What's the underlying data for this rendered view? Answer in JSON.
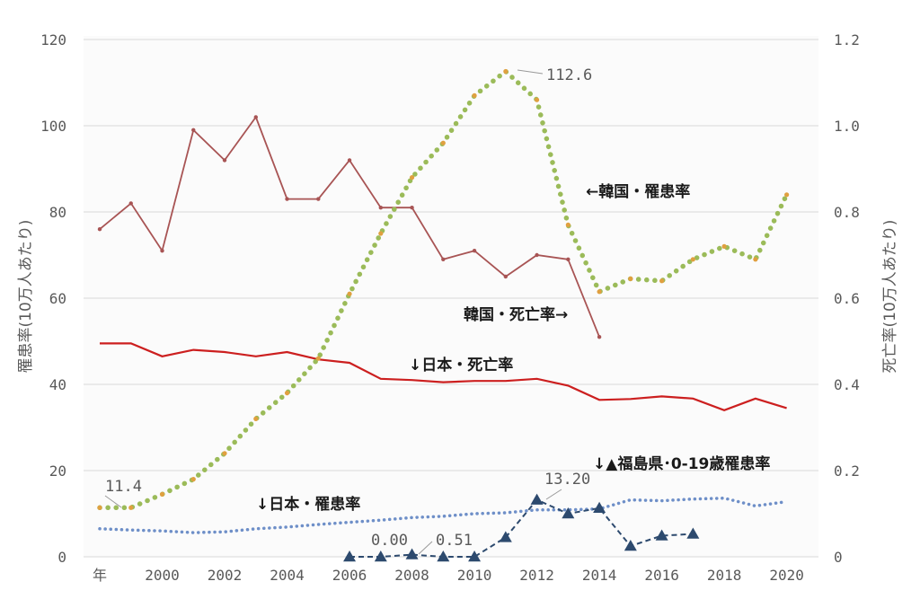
{
  "chart_data": {
    "type": "line",
    "x_label_first": "年",
    "x_ticks": [
      "2000",
      "2002",
      "2004",
      "2006",
      "2008",
      "2010",
      "2012",
      "2014",
      "2016",
      "2018",
      "2020"
    ],
    "y_left": {
      "label": "罹患率(10万人あたり)",
      "ticks": [
        "0",
        "20",
        "40",
        "60",
        "80",
        "100",
        "120"
      ],
      "range": [
        0,
        120
      ]
    },
    "y_right": {
      "label": "死亡率(10万人あたり)",
      "ticks": [
        "0",
        "0.2",
        "0.4",
        "0.6",
        "0.8",
        "1.0",
        "1.2"
      ],
      "range": [
        0,
        1.2
      ]
    },
    "grid": true,
    "series": [
      {
        "name": "韓国・罹患率",
        "label_text": "←韓国・罹患率",
        "axis": "left",
        "style": "dotted",
        "color": "#9bbb59",
        "accent": "#e0a040",
        "x": [
          1998,
          1999,
          2000,
          2001,
          2002,
          2003,
          2004,
          2005,
          2006,
          2007,
          2008,
          2009,
          2010,
          2011,
          2012,
          2013,
          2014,
          2015,
          2016,
          2017,
          2018,
          2019,
          2020
        ],
        "values": [
          11.4,
          11.4,
          14.5,
          18,
          24,
          32,
          38,
          46,
          61,
          75,
          88,
          96,
          107,
          112.6,
          106,
          77,
          61.5,
          64.5,
          64,
          69,
          72,
          69,
          84
        ]
      },
      {
        "name": "韓国・死亡率",
        "label_text": "韓国・死亡率→",
        "axis": "right",
        "style": "solid",
        "color": "#a85454",
        "x": [
          1998,
          1999,
          2000,
          2001,
          2002,
          2003,
          2004,
          2005,
          2006,
          2007,
          2008,
          2009,
          2010,
          2011,
          2012,
          2013,
          2014
        ],
        "values": [
          0.76,
          0.82,
          0.71,
          0.99,
          0.92,
          1.02,
          0.83,
          0.83,
          0.92,
          0.81,
          0.81,
          0.69,
          0.71,
          0.65,
          0.7,
          0.69,
          0.51
        ]
      },
      {
        "name": "日本・死亡率",
        "label_text": "↓日本・死亡率",
        "axis": "right",
        "style": "solid",
        "color": "#cc1f1f",
        "x": [
          1998,
          1999,
          2000,
          2001,
          2002,
          2003,
          2004,
          2005,
          2006,
          2007,
          2008,
          2009,
          2010,
          2011,
          2012,
          2013,
          2014,
          2015,
          2016,
          2017,
          2018,
          2019,
          2020
        ],
        "values": [
          0.495,
          0.495,
          0.465,
          0.48,
          0.475,
          0.465,
          0.475,
          0.458,
          0.45,
          0.413,
          0.41,
          0.405,
          0.408,
          0.408,
          0.413,
          0.397,
          0.364,
          0.366,
          0.372,
          0.367,
          0.34,
          0.367,
          0.345
        ]
      },
      {
        "name": "日本・罹患率",
        "label_text": "↓日本・罹患率",
        "axis": "left",
        "style": "dotted",
        "color": "#6e8fc8",
        "x": [
          1998,
          1999,
          2000,
          2001,
          2002,
          2003,
          2004,
          2005,
          2006,
          2007,
          2008,
          2009,
          2010,
          2011,
          2012,
          2013,
          2014,
          2015,
          2016,
          2017,
          2018,
          2019,
          2020
        ],
        "values": [
          6.5,
          6.2,
          6.0,
          5.6,
          5.8,
          6.5,
          6.9,
          7.5,
          8.0,
          8.5,
          9.1,
          9.4,
          10,
          10.2,
          10.9,
          10.9,
          11.1,
          13.2,
          13.0,
          13.4,
          13.6,
          11.8,
          12.8
        ]
      },
      {
        "name": "福島県・0-19歳罹患率",
        "label_text": "↓▲福島県･0-19歳罹患率",
        "axis": "left",
        "style": "dashed",
        "color": "#2d4a6e",
        "marker": "triangle",
        "x": [
          2006,
          2007,
          2008,
          2009,
          2010,
          2011,
          2012,
          2013,
          2014,
          2015,
          2016,
          2017
        ],
        "values": [
          0,
          0,
          0.51,
          0,
          0,
          4.5,
          13.2,
          10,
          11.3,
          2.5,
          4.9,
          5.3
        ]
      }
    ],
    "annotations": [
      "11.4",
      "112.6",
      "13.20",
      "0.00",
      "0.51",
      "0.2",
      "0.4",
      "0.6"
    ]
  }
}
